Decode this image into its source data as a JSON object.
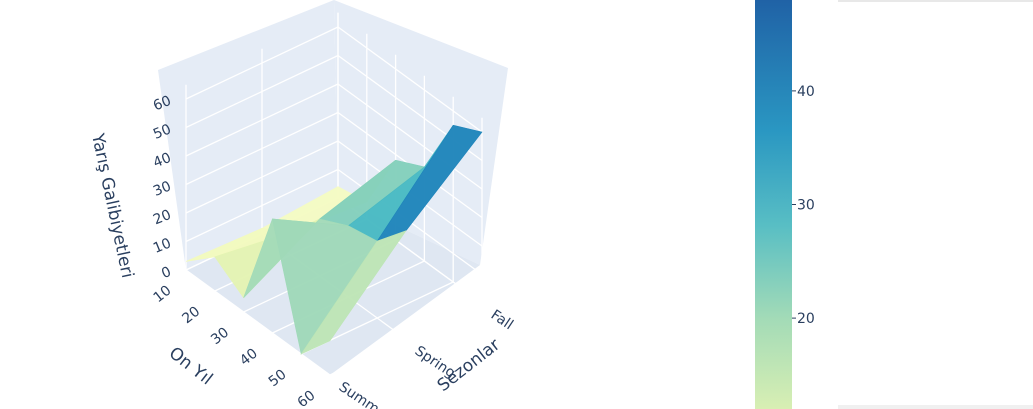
{
  "chart_data": {
    "type": "surface",
    "title": "",
    "x_axis": {
      "label": "On Yıl",
      "ticks": [
        "10",
        "20",
        "30",
        "40",
        "50",
        "60"
      ]
    },
    "y_axis": {
      "label": "Sezonlar",
      "ticks": [
        "Summer",
        "Spring",
        "Fall"
      ]
    },
    "z_axis": {
      "label": "Yarış Galibiyetleri",
      "ticks": [
        "0",
        "10",
        "20",
        "30",
        "40",
        "50",
        "60"
      ],
      "range": [
        0,
        65
      ]
    },
    "x": [
      10,
      20,
      30,
      40,
      50,
      60
    ],
    "y": [
      "Summer",
      "Spring",
      "Fall"
    ],
    "z": [
      [
        3,
        2,
        4
      ],
      [
        12,
        8,
        6
      ],
      [
        5,
        20,
        28
      ],
      [
        40,
        25,
        33
      ],
      [
        0,
        27,
        55
      ],
      [
        12,
        38,
        60
      ]
    ],
    "colorscale": "YlGnBu (reversed)",
    "colorbar": {
      "ticks": [
        "20",
        "30",
        "40"
      ],
      "range": [
        12,
        48
      ]
    },
    "colors": {
      "plot_background": "#e5ecf6",
      "grid": "#ffffff",
      "text": "#2a3f5f"
    }
  }
}
